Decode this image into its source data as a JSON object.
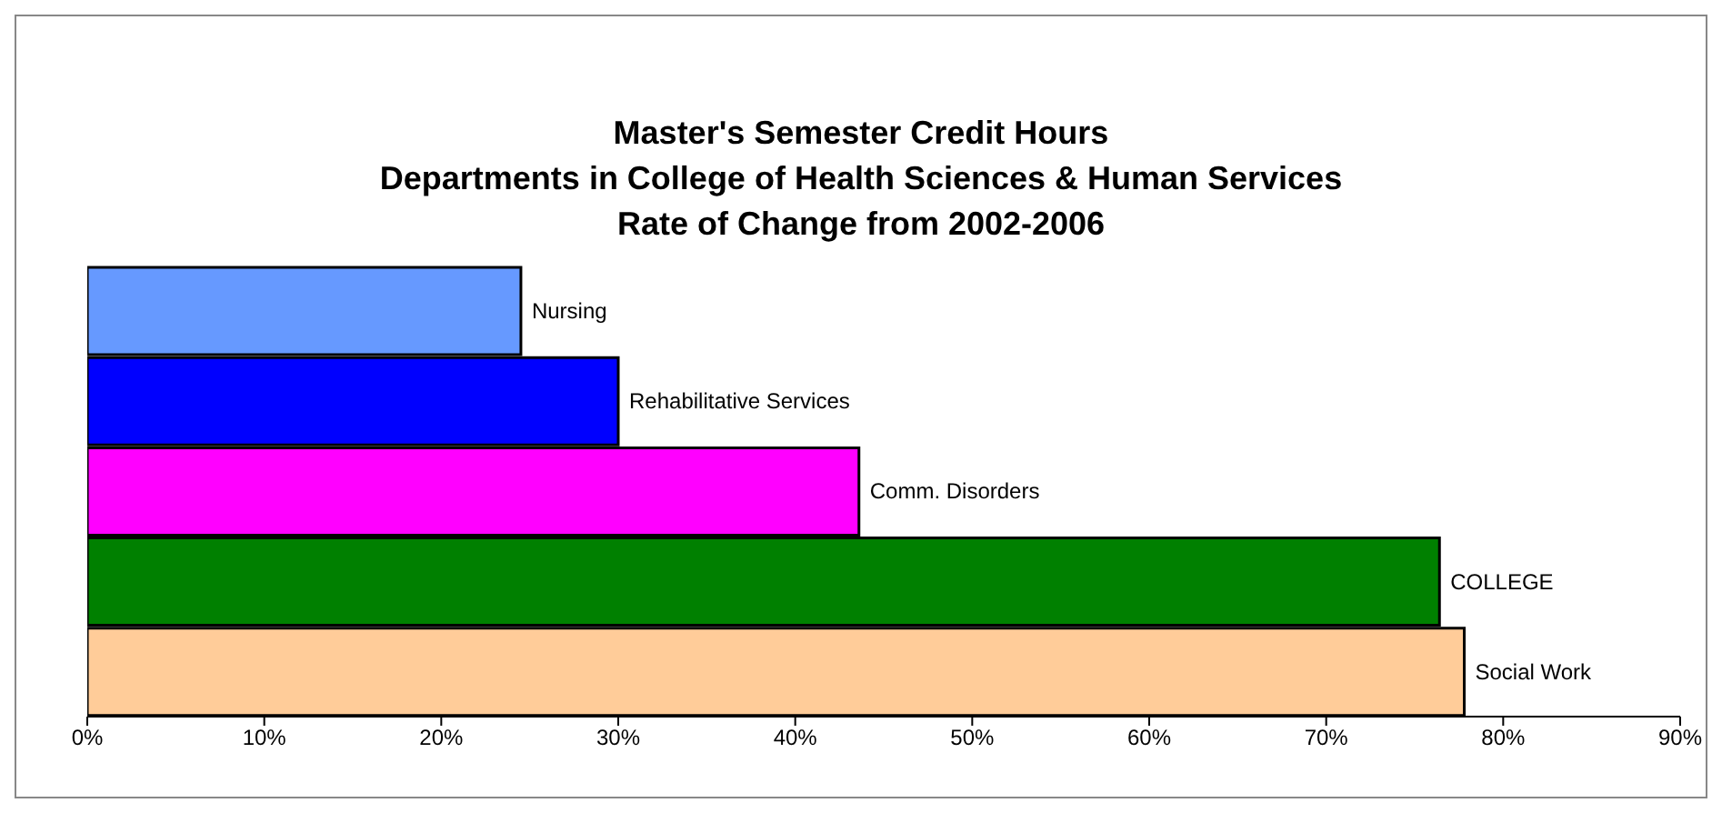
{
  "chart_data": {
    "type": "bar",
    "orientation": "horizontal",
    "title": "Master's Semester Credit Hours\nDepartments in College of Health Sciences & Human Services\nRate of Change from 2002-2006",
    "categories": [
      "Nursing",
      "Rehabilitative Services",
      "Comm. Disorders",
      "COLLEGE",
      "Social Work"
    ],
    "values": [
      24.5,
      30.0,
      43.6,
      76.4,
      77.8
    ],
    "colors": [
      "#6699ff",
      "#0000ff",
      "#ff00ff",
      "#008000",
      "#ffcc99"
    ],
    "xlim": [
      0,
      90
    ],
    "xticks": [
      {
        "value": 0,
        "label": "0%"
      },
      {
        "value": 10,
        "label": "10%"
      },
      {
        "value": 20,
        "label": "20%"
      },
      {
        "value": 30,
        "label": "30%"
      },
      {
        "value": 40,
        "label": "40%"
      },
      {
        "value": 50,
        "label": "50%"
      },
      {
        "value": 60,
        "label": "60%"
      },
      {
        "value": 70,
        "label": "70%"
      },
      {
        "value": 80,
        "label": "80%"
      },
      {
        "value": 90,
        "label": "90%"
      }
    ],
    "tick_labels": "x",
    "grid": false,
    "legend": false
  }
}
